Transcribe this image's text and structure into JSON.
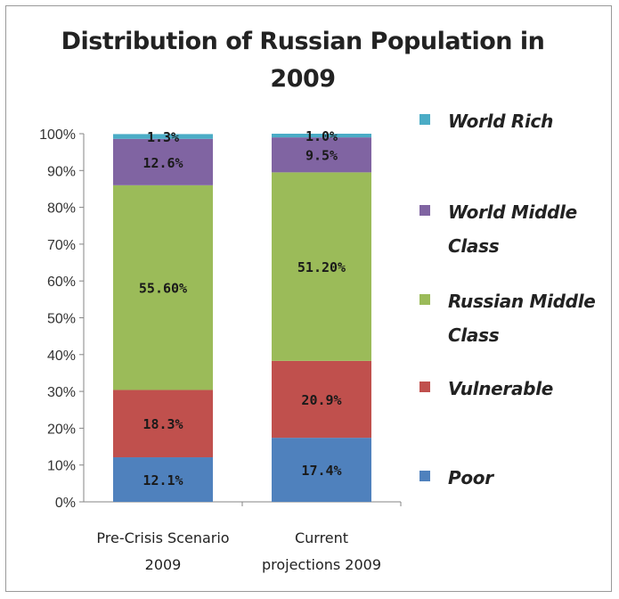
{
  "chart_data": {
    "type": "bar",
    "stacked": true,
    "title_lines": [
      "Distribution of Russian Population in",
      "2009"
    ],
    "categories": [
      [
        "Pre-Crisis Scenario",
        "2009"
      ],
      [
        "Current",
        "projections 2009"
      ]
    ],
    "series": [
      {
        "name": "Poor",
        "color": "#4f81bd",
        "values": [
          12.1,
          17.4
        ],
        "labels": [
          "12.1%",
          "17.4%"
        ]
      },
      {
        "name": "Vulnerable",
        "color": "#c0504d",
        "values": [
          18.3,
          20.9
        ],
        "labels": [
          "18.3%",
          "20.9%"
        ]
      },
      {
        "name": "Russian Middle Class",
        "legend_lines": [
          "Russian Middle",
          "Class"
        ],
        "color": "#9bbb59",
        "values": [
          55.6,
          51.2
        ],
        "labels": [
          "55.60%",
          "51.20%"
        ]
      },
      {
        "name": "World Middle Class",
        "legend_lines": [
          "World Middle",
          "Class"
        ],
        "color": "#8064a2",
        "values": [
          12.6,
          9.5
        ],
        "labels": [
          "12.6%",
          "9.5%"
        ]
      },
      {
        "name": "World Rich",
        "color": "#4bacc6",
        "values": [
          1.3,
          1.0
        ],
        "labels": [
          "1.3%",
          "1.0%"
        ]
      }
    ],
    "ylim": [
      0,
      100
    ],
    "yticks": [
      "0%",
      "10%",
      "20%",
      "30%",
      "40%",
      "50%",
      "60%",
      "70%",
      "80%",
      "90%",
      "100%"
    ],
    "grid": false,
    "legend_position": "right"
  }
}
